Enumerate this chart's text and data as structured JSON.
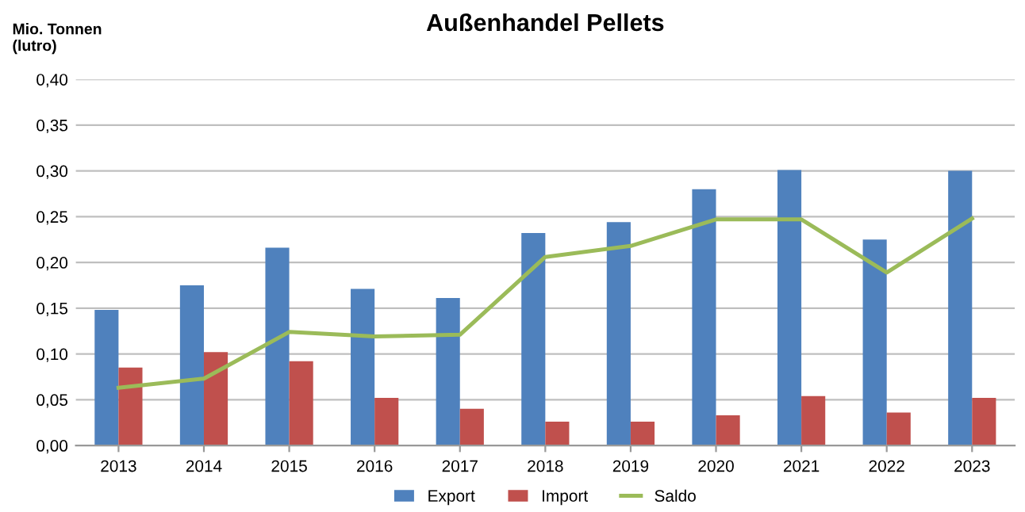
{
  "chart_data": {
    "type": "bar",
    "title": "Außenhandel Pellets",
    "ylabel": "Mio. Tonnen\n(lutro)",
    "categories": [
      "2013",
      "2014",
      "2015",
      "2016",
      "2017",
      "2018",
      "2019",
      "2020",
      "2021",
      "2022",
      "2023"
    ],
    "series": [
      {
        "name": "Export",
        "color": "#4f81bd",
        "values": [
          0.148,
          0.175,
          0.216,
          0.171,
          0.161,
          0.232,
          0.244,
          0.28,
          0.301,
          0.225,
          0.3
        ]
      },
      {
        "name": "Import",
        "color": "#c0504d",
        "values": [
          0.085,
          0.102,
          0.092,
          0.052,
          0.04,
          0.026,
          0.026,
          0.033,
          0.054,
          0.036,
          0.052
        ]
      },
      {
        "name": "Saldo",
        "type": "line",
        "color": "#9bbb59",
        "values": [
          0.063,
          0.073,
          0.124,
          0.119,
          0.121,
          0.206,
          0.218,
          0.247,
          0.247,
          0.189,
          0.248
        ]
      }
    ],
    "ylim": [
      0,
      0.4
    ],
    "yticks": [
      {
        "value": 0,
        "label": "0,00"
      },
      {
        "value": 0.05,
        "label": "0,05"
      },
      {
        "value": 0.1,
        "label": "0,10"
      },
      {
        "value": 0.15,
        "label": "0,15"
      },
      {
        "value": 0.2,
        "label": "0,20"
      },
      {
        "value": 0.25,
        "label": "0,25"
      },
      {
        "value": 0.3,
        "label": "0,30"
      },
      {
        "value": 0.35,
        "label": "0,35"
      },
      {
        "value": 0.4,
        "label": "0,40"
      }
    ],
    "grid": "y",
    "legend": "bottom",
    "marker": "none",
    "line_style": "solid"
  }
}
